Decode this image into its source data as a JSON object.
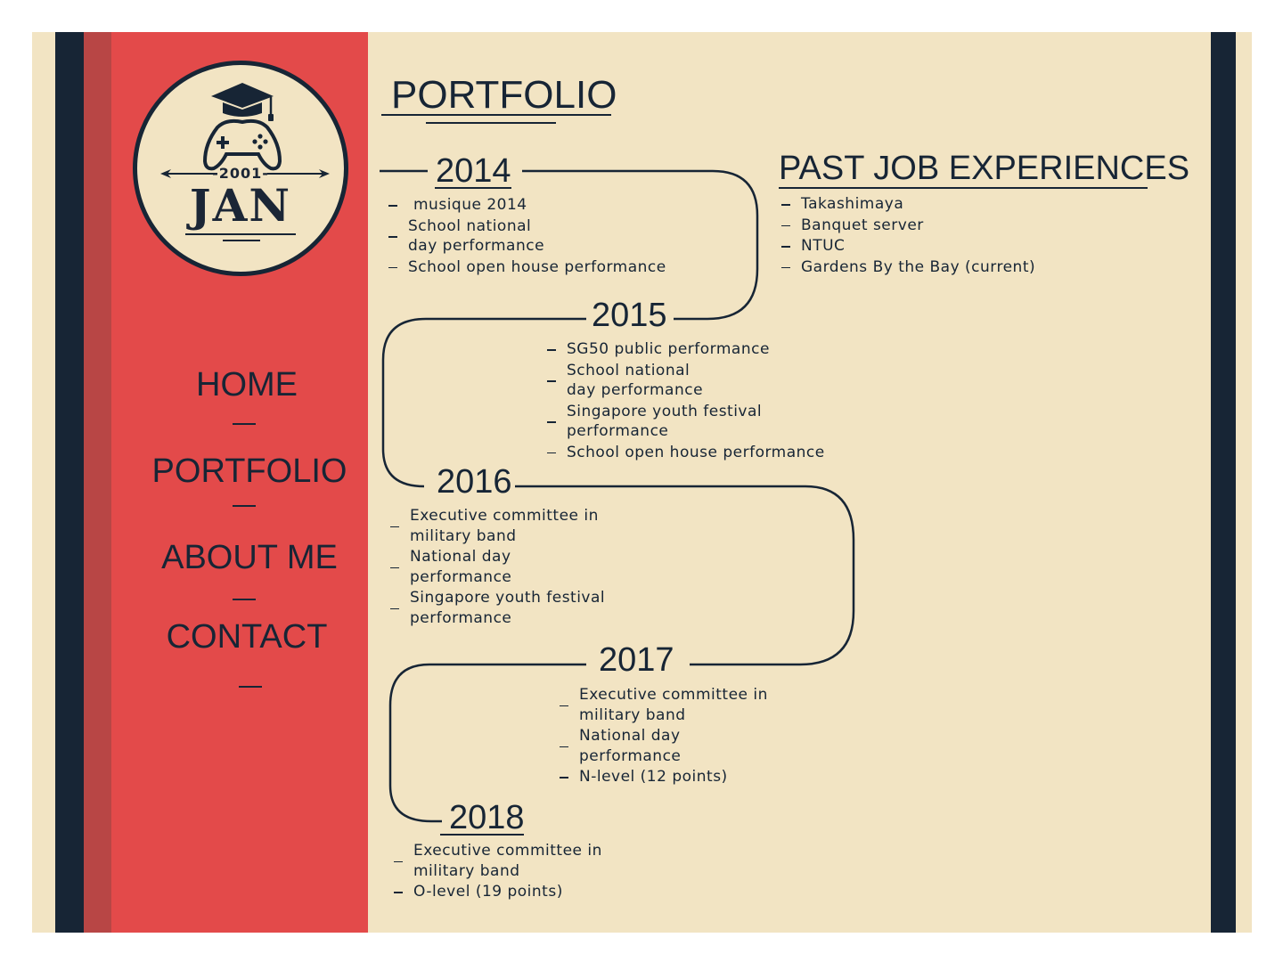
{
  "logo": {
    "year": "-2001-",
    "name": "JAN"
  },
  "nav": [
    {
      "label": "HOME"
    },
    {
      "label": "PORTFOLIO"
    },
    {
      "label": "ABOUT ME"
    },
    {
      "label": "CONTACT"
    }
  ],
  "page_title": "PORTFOLIO",
  "timeline": [
    {
      "year": "2014",
      "entries": [
        "musique 2014",
        "School national day performance",
        "School open house performance"
      ]
    },
    {
      "year": "2015",
      "entries": [
        "SG50 public performance",
        "School national day performance",
        "Singapore youth festival performance",
        "School open house performance"
      ]
    },
    {
      "year": "2016",
      "entries": [
        "Executive committee in military band",
        "National day performance",
        "Singapore youth festival performance"
      ]
    },
    {
      "year": "2017",
      "entries": [
        "Executive committee in military band",
        "National day performance",
        "N-level (12 points)"
      ]
    },
    {
      "year": "2018",
      "entries": [
        "Executive committee in military band",
        "O-level (19 points)"
      ]
    }
  ],
  "jobs": {
    "title": "PAST JOB EXPERIENCES",
    "items": [
      "Takashimaya",
      "Banquet server",
      "NTUC",
      "Gardens By the Bay (current)"
    ]
  },
  "colors": {
    "navy": "#172535",
    "red": "#e34a4a",
    "dark_red": "#b84645",
    "cream": "#f2e4c3"
  }
}
